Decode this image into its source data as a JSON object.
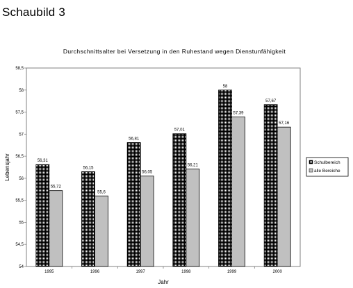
{
  "page": {
    "heading": "Schaubild 3"
  },
  "chart_data": {
    "type": "bar",
    "title": "Durchschnittsalter bei Versetzung in den Ruhestand wegen Dienstunfähigkeit",
    "xlabel": "Jahr",
    "ylabel": "Lebensjahr",
    "categories": [
      "1995",
      "1996",
      "1997",
      "1998",
      "1999",
      "2000"
    ],
    "ylim": [
      54,
      58.5
    ],
    "yticks": [
      "54",
      "54,5",
      "55",
      "55,5",
      "56",
      "56,5",
      "57",
      "57,5",
      "58",
      "58,5"
    ],
    "legend_position": "right",
    "series": [
      {
        "name": "Schulbereich",
        "values": [
          56.31,
          56.15,
          56.81,
          57.01,
          58,
          57.67
        ],
        "labels": [
          "56,31",
          "56,15",
          "56,81",
          "57,01",
          "58",
          "57,67"
        ],
        "fill": "dotted-black"
      },
      {
        "name": "alle Bereiche",
        "values": [
          55.72,
          55.6,
          56.05,
          56.21,
          57.39,
          57.16
        ],
        "labels": [
          "55,72",
          "55,6",
          "56,05",
          "56,21",
          "57,39",
          "57,16"
        ],
        "color": "#c0c0c0"
      }
    ]
  }
}
